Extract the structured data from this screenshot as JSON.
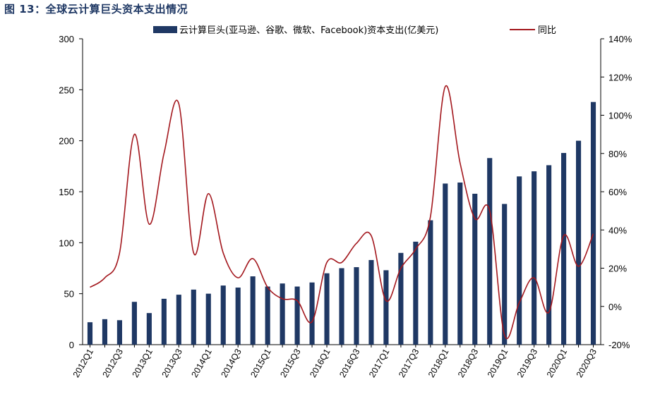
{
  "figure_title": "图 13：全球云计算巨头资本支出情况",
  "colors": {
    "bar": "#1f3864",
    "line": "#a3171d",
    "title": "#1f3864"
  },
  "chart_data": {
    "type": "bar",
    "title": "图 13：全球云计算巨头资本支出情况",
    "categories": [
      "2012Q1",
      "2012Q2",
      "2012Q3",
      "2012Q4",
      "2013Q1",
      "2013Q2",
      "2013Q3",
      "2013Q4",
      "2014Q1",
      "2014Q2",
      "2014Q3",
      "2014Q4",
      "2015Q1",
      "2015Q2",
      "2015Q3",
      "2015Q4",
      "2016Q1",
      "2016Q2",
      "2016Q3",
      "2016Q4",
      "2017Q1",
      "2017Q2",
      "2017Q3",
      "2017Q4",
      "2018Q1",
      "2018Q2",
      "2018Q3",
      "2018Q4",
      "2019Q1",
      "2019Q2",
      "2019Q3",
      "2019Q4",
      "2020Q1",
      "2020Q2",
      "2020Q3"
    ],
    "x_tick_labels": [
      "2012Q1",
      "2012Q3",
      "2013Q1",
      "2013Q3",
      "2014Q1",
      "2014Q3",
      "2015Q1",
      "2015Q3",
      "2016Q1",
      "2016Q3",
      "2017Q1",
      "2017Q3",
      "2018Q1",
      "2018Q3",
      "2019Q1",
      "2019Q3",
      "2020Q1",
      "2020Q3"
    ],
    "series": [
      {
        "name": "云计算巨头(亚马逊、谷歌、微软、Facebook)资本支出(亿美元)",
        "type": "bar",
        "axis": "left",
        "values": [
          22,
          25,
          24,
          42,
          31,
          45,
          49,
          54,
          50,
          58,
          56,
          67,
          57,
          60,
          57,
          61,
          70,
          75,
          76,
          83,
          73,
          90,
          101,
          122,
          158,
          159,
          148,
          183,
          138,
          165,
          170,
          176,
          188,
          200,
          238
        ]
      },
      {
        "name": "同比",
        "type": "line",
        "axis": "right",
        "values": [
          10,
          15,
          28,
          90,
          43,
          80,
          106,
          28,
          59,
          28,
          15,
          25,
          10,
          4,
          3,
          -8,
          23,
          23,
          33,
          37,
          3,
          20,
          30,
          47,
          115,
          75,
          46,
          50,
          -15,
          2,
          15,
          -3,
          37,
          21,
          38
        ]
      }
    ],
    "y_left": {
      "min": 0,
      "max": 300,
      "ticks": [
        0,
        50,
        100,
        150,
        200,
        250,
        300
      ]
    },
    "y_right": {
      "min": -20,
      "max": 140,
      "ticks": [
        -20,
        0,
        20,
        40,
        60,
        80,
        100,
        120,
        140
      ],
      "tick_labels": [
        "-20%",
        "0%",
        "20%",
        "40%",
        "60%",
        "80%",
        "100%",
        "120%",
        "140%"
      ]
    },
    "legend": [
      {
        "label": "云计算巨头(亚马逊、谷歌、微软、Facebook)资本支出(亿美元)",
        "kind": "bar"
      },
      {
        "label": "同比",
        "kind": "line"
      }
    ],
    "legend_position": "top",
    "grid": false
  }
}
